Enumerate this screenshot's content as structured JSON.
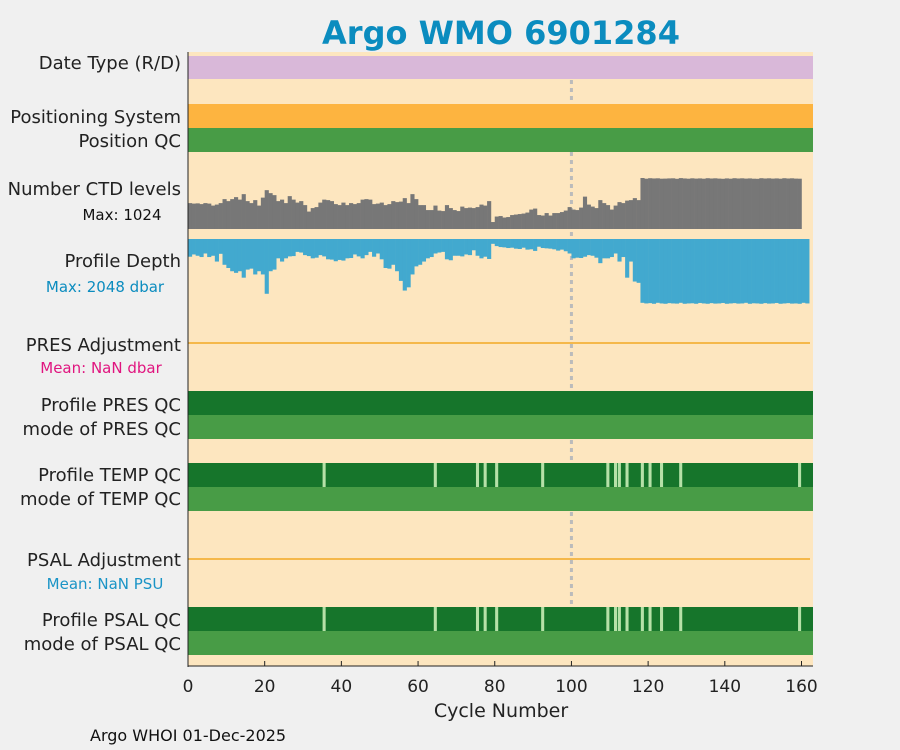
{
  "colors": {
    "page_bg": "#f0f0f0",
    "plot_bg": "#fde6bf",
    "title": "#0b8cbf",
    "date_type": "#d9b8d9",
    "positioning": "#fdb440",
    "qc_mode": "#489c46",
    "qc_profile_good": "#16752b",
    "qc_profile_gap": "#b6e1a8",
    "ctd": "#777777",
    "depth": "#42a9cf",
    "adjust_line": "#f5b84a",
    "pres_mean": "#e0157f",
    "psal_mean": "#1a94c6",
    "ref_line": "#bbbbbb"
  },
  "chart_data": {
    "type": "bar",
    "title": "Argo WMO 6901284",
    "xlabel": "Cycle Number",
    "xlim": [
      0,
      163
    ],
    "xticks": [
      0,
      20,
      40,
      60,
      80,
      100,
      120,
      140,
      160
    ],
    "reference_cycle": 100,
    "rows": [
      {
        "key": "date_type",
        "label": "Date Type (R/D)",
        "kind": "band",
        "value": "R (all cycles)"
      },
      {
        "key": "positioning",
        "label": "Positioning System",
        "kind": "band",
        "value": "uniform (all cycles)"
      },
      {
        "key": "position_qc",
        "label": "Position QC",
        "kind": "band",
        "value": "good (all cycles)"
      },
      {
        "key": "ctd",
        "label": "Number CTD levels",
        "sublabel": "Max: 1024",
        "kind": "bars_up",
        "max": 1024
      },
      {
        "key": "depth",
        "label": "Profile Depth",
        "sublabel": "Max: 2048 dbar",
        "kind": "bars_down",
        "max": 2048
      },
      {
        "key": "pres_adj",
        "label": "PRES Adjustment",
        "sublabel": "Mean:  NaN dbar",
        "kind": "line",
        "value": "NaN"
      },
      {
        "key": "pres_profile_qc",
        "label": "Profile PRES QC",
        "kind": "qc"
      },
      {
        "key": "pres_mode_qc",
        "label": "mode of PRES QC",
        "kind": "band"
      },
      {
        "key": "temp_profile_qc",
        "label": "Profile TEMP QC",
        "kind": "qc"
      },
      {
        "key": "temp_mode_qc",
        "label": "mode of TEMP QC",
        "kind": "band"
      },
      {
        "key": "psal_adj",
        "label": "PSAL Adjustment",
        "sublabel": "Mean:  NaN PSU",
        "kind": "line",
        "value": "NaN"
      },
      {
        "key": "psal_profile_qc",
        "label": "Profile PSAL QC",
        "kind": "qc"
      },
      {
        "key": "psal_mode_qc",
        "label": "mode of PSAL QC",
        "kind": "band"
      }
    ],
    "ctd_levels": [
      520,
      510,
      515,
      500,
      520,
      510,
      470,
      490,
      520,
      600,
      560,
      600,
      640,
      590,
      700,
      560,
      520,
      580,
      470,
      630,
      780,
      720,
      680,
      560,
      590,
      520,
      660,
      590,
      530,
      560,
      480,
      350,
      420,
      440,
      530,
      590,
      580,
      560,
      500,
      480,
      530,
      480,
      520,
      500,
      520,
      590,
      600,
      590,
      500,
      510,
      530,
      480,
      500,
      560,
      540,
      550,
      620,
      520,
      700,
      600,
      480,
      480,
      380,
      380,
      470,
      370,
      360,
      480,
      420,
      380,
      360,
      450,
      420,
      430,
      420,
      440,
      490,
      470,
      560,
      140,
      250,
      260,
      230,
      240,
      280,
      290,
      300,
      310,
      330,
      390,
      410,
      280,
      270,
      320,
      270,
      320,
      320,
      340,
      370,
      440,
      390,
      380,
      430,
      650,
      490,
      450,
      420,
      580,
      520,
      480,
      390,
      470,
      540,
      520,
      570,
      580,
      620,
      580,
      1024,
      1010,
      1020,
      1015,
      1018,
      1010,
      1012,
      1016,
      1018,
      1008,
      1022,
      1015,
      1010,
      1018,
      1012,
      1016,
      1010,
      1020,
      1014,
      1018,
      1012,
      1008,
      1016,
      1010,
      1020,
      1014,
      1018,
      1012,
      1016,
      1010,
      1008,
      1020,
      1014,
      1018,
      1012,
      1016,
      1010,
      1020,
      1014,
      1018,
      1012,
      1010
    ],
    "profile_depth": [
      550,
      480,
      520,
      560,
      450,
      560,
      520,
      700,
      460,
      800,
      900,
      1000,
      1050,
      1000,
      1200,
      950,
      920,
      1100,
      1000,
      1100,
      1700,
      1000,
      950,
      600,
      700,
      600,
      540,
      530,
      400,
      420,
      500,
      530,
      600,
      580,
      500,
      540,
      630,
      640,
      690,
      650,
      670,
      600,
      590,
      480,
      540,
      600,
      500,
      400,
      550,
      450,
      630,
      900,
      920,
      800,
      1000,
      1300,
      1600,
      1500,
      1100,
      850,
      800,
      700,
      600,
      560,
      450,
      420,
      400,
      630,
      660,
      520,
      520,
      540,
      480,
      500,
      350,
      520,
      600,
      550,
      620,
      150,
      220,
      250,
      260,
      280,
      270,
      300,
      310,
      270,
      330,
      320,
      370,
      240,
      280,
      290,
      300,
      320,
      360,
      330,
      380,
      450,
      600,
      580,
      590,
      550,
      500,
      520,
      580,
      750,
      600,
      600,
      560,
      450,
      700,
      560,
      1200,
      700,
      1320,
      1360,
      1980,
      2000,
      1990,
      2010,
      1980,
      2000,
      2010,
      1990,
      2000,
      2005,
      1980,
      2010,
      2000,
      1995,
      2010,
      1985,
      2000,
      2010,
      1990,
      2005,
      2000,
      1985,
      2010,
      2000,
      1990,
      2005,
      2000,
      1980,
      2010,
      1995,
      2000,
      2010,
      1990,
      2005,
      2000,
      1985,
      2010,
      2000,
      1990,
      2005,
      2000,
      2010,
      1980,
      2000
    ],
    "temp_psal_qc_gaps": [
      35,
      64,
      75,
      77,
      80,
      92,
      109,
      111,
      112,
      114,
      118,
      120,
      123,
      128,
      159
    ]
  },
  "footer": "Argo WHOI 01-Dec-2025"
}
